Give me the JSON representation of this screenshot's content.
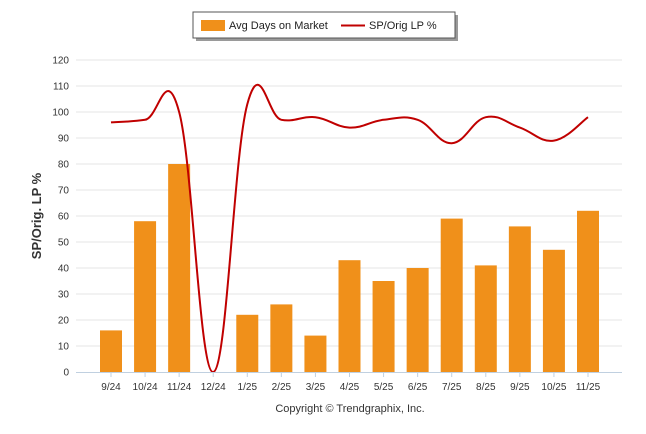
{
  "chart_data": {
    "type": "bar+line",
    "title": "",
    "categories": [
      "9/24",
      "10/24",
      "11/24",
      "12/24",
      "1/25",
      "2/25",
      "3/25",
      "4/25",
      "5/25",
      "6/25",
      "7/25",
      "8/25",
      "9/25",
      "10/25",
      "11/25"
    ],
    "series": [
      {
        "name": "Avg Days on Market",
        "type": "bar",
        "color": "#f0901a",
        "values": [
          16,
          58,
          80,
          0,
          22,
          26,
          14,
          43,
          35,
          40,
          59,
          41,
          56,
          47,
          62
        ]
      },
      {
        "name": "SP/Orig LP %",
        "type": "line",
        "color": "#c00000",
        "values": [
          96,
          97,
          100,
          0,
          103,
          97,
          98,
          94,
          97,
          97,
          88,
          98,
          94,
          89,
          98
        ]
      }
    ],
    "ylabel": "SP/Orig. LP %",
    "xlabel": "",
    "ylim": [
      0,
      120
    ],
    "yticks": [
      0,
      10,
      20,
      30,
      40,
      50,
      60,
      70,
      80,
      90,
      100,
      110,
      120
    ],
    "grid": true,
    "legend_position": "top-center"
  },
  "footer": {
    "copyright": "Copyright © Trendgraphix, Inc."
  }
}
